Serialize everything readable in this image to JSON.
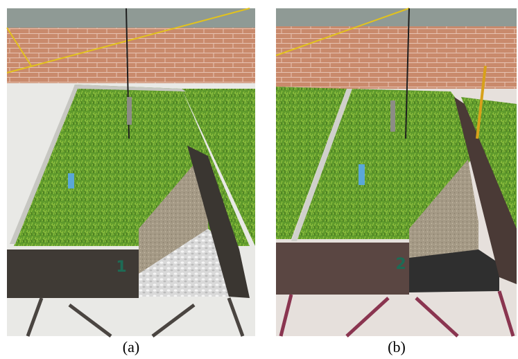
{
  "panels": [
    {
      "label": "(a)",
      "bed_number": "1"
    },
    {
      "label": "(b)",
      "bed_number": "2"
    }
  ]
}
